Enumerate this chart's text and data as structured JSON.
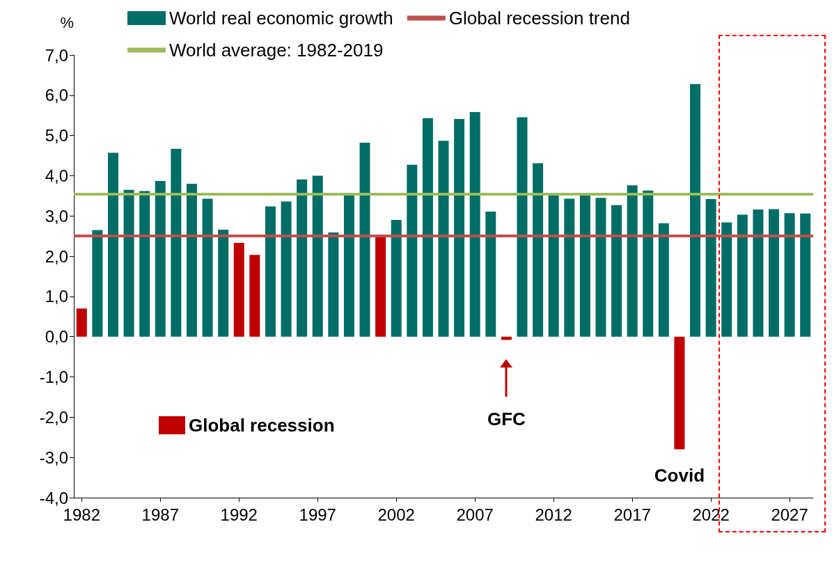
{
  "chart_data": {
    "type": "bar",
    "ylabel": "%",
    "x": [
      1982,
      1983,
      1984,
      1985,
      1986,
      1987,
      1988,
      1989,
      1990,
      1991,
      1992,
      1993,
      1994,
      1995,
      1996,
      1997,
      1998,
      1999,
      2000,
      2001,
      2002,
      2003,
      2004,
      2005,
      2006,
      2007,
      2008,
      2009,
      2010,
      2011,
      2012,
      2013,
      2014,
      2015,
      2016,
      2017,
      2018,
      2019,
      2020,
      2021,
      2022,
      2023,
      2024,
      2025,
      2026,
      2027,
      2028
    ],
    "series": [
      {
        "name": "World real economic growth",
        "color": "#006d66",
        "values": [
          null,
          2.65,
          4.57,
          3.65,
          3.62,
          3.87,
          4.67,
          3.8,
          3.43,
          2.66,
          null,
          null,
          3.24,
          3.36,
          3.91,
          4.0,
          2.59,
          3.52,
          4.82,
          null,
          2.9,
          4.27,
          5.43,
          4.87,
          5.41,
          5.58,
          3.11,
          null,
          5.45,
          4.31,
          3.54,
          3.43,
          3.55,
          3.45,
          3.27,
          3.76,
          3.63,
          2.82,
          null,
          6.28,
          3.42,
          2.84,
          3.03,
          3.16,
          3.17,
          3.07,
          3.06
        ]
      },
      {
        "name": "Global recession",
        "color": "#c00000",
        "values": [
          0.7,
          null,
          null,
          null,
          null,
          null,
          null,
          null,
          null,
          null,
          2.33,
          2.03,
          null,
          null,
          null,
          null,
          null,
          null,
          null,
          2.52,
          null,
          null,
          null,
          null,
          null,
          null,
          null,
          -0.08,
          null,
          null,
          null,
          null,
          null,
          null,
          null,
          null,
          null,
          null,
          -2.8,
          null,
          null,
          null,
          null,
          null,
          null,
          null,
          null
        ]
      },
      {
        "type": "line",
        "name": "World average: 1982-2019",
        "color": "#9bbb59",
        "x": [
          1981.5,
          2028.5
        ],
        "values": [
          3.54,
          3.54
        ]
      }
    ],
    "xlim": [
      1981.5,
      2028.5
    ],
    "xticks": [
      1982,
      1987,
      1992,
      1997,
      2002,
      2007,
      2012,
      2017,
      2022,
      2027
    ],
    "ylim": [
      -4,
      7
    ],
    "yticks": [
      {
        "value": -4,
        "label": "-4,0"
      },
      {
        "value": -3,
        "label": "-3,0"
      },
      {
        "value": -2,
        "label": "-2,0"
      },
      {
        "value": -1,
        "label": "-1,0"
      },
      {
        "value": 0,
        "label": "0,0"
      },
      {
        "value": 1,
        "label": "1,0"
      },
      {
        "value": 2,
        "label": "2,0"
      },
      {
        "value": 3,
        "label": "3,0"
      },
      {
        "value": 4,
        "label": "4,0"
      },
      {
        "value": 5,
        "label": "5,0"
      },
      {
        "value": 6,
        "label": "6,0"
      },
      {
        "value": 7,
        "label": "7,0"
      }
    ],
    "ref_lines": [
      {
        "axis": "y",
        "value": 2.5,
        "label": "Global recession trend",
        "color": "#c0504d"
      }
    ],
    "annotations": [
      "GFC",
      "Covid"
    ],
    "grid": false,
    "legend": "top"
  }
}
